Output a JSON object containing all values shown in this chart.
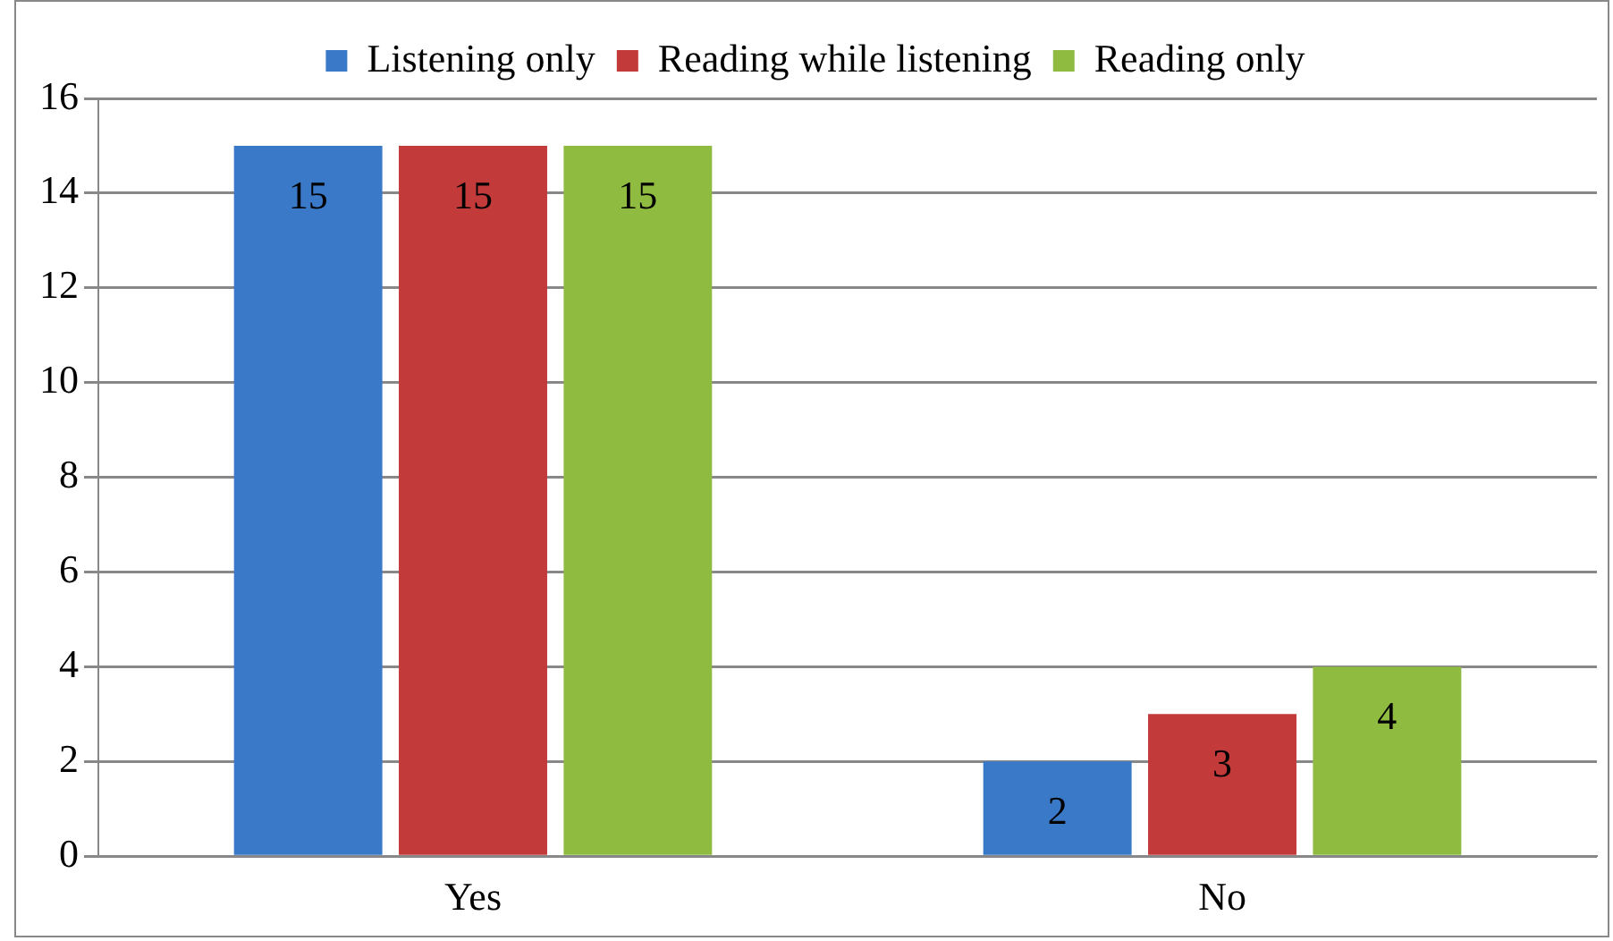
{
  "chart_data": {
    "type": "bar",
    "categories": [
      "Yes",
      "No"
    ],
    "series": [
      {
        "name": "Listening only",
        "color": "#3a78c8",
        "values": [
          15,
          2
        ]
      },
      {
        "name": "Reading while listening",
        "color": "#c33a3a",
        "values": [
          15,
          3
        ]
      },
      {
        "name": "Reading only",
        "color": "#8fbb40",
        "values": [
          15,
          4
        ]
      }
    ],
    "ylim": [
      0,
      16
    ],
    "yticks": [
      0,
      2,
      4,
      6,
      8,
      10,
      12,
      14,
      16
    ],
    "grid": "y",
    "legend": "top",
    "data_labels": true
  }
}
